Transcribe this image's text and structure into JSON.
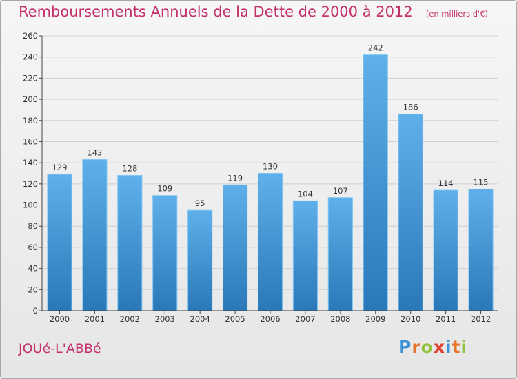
{
  "header": {
    "title": "Remboursements Annuels de la Dette de 2000 à 2012",
    "unit_note": "(en milliers d'€)"
  },
  "footer": {
    "commune": "JOUé-L'ABBé",
    "logo_text": "Proxiti"
  },
  "colors": {
    "title": "#c4306a",
    "bar_top": "#5fb0ea",
    "bar_bottom": "#2a78b8",
    "grid": "#cfcfcf"
  },
  "chart_data": {
    "type": "bar",
    "title": "Remboursements Annuels de la Dette de 2000 à 2012",
    "subtitle": "(en milliers d'€)",
    "xlabel": "",
    "ylabel": "",
    "categories": [
      "2000",
      "2001",
      "2002",
      "2003",
      "2004",
      "2005",
      "2006",
      "2007",
      "2008",
      "2009",
      "2010",
      "2011",
      "2012"
    ],
    "values": [
      129,
      143,
      128,
      109,
      95,
      119,
      130,
      104,
      107,
      242,
      186,
      114,
      115
    ],
    "data_labels": [
      "129",
      "143",
      "128",
      "109",
      "95",
      "119",
      "130",
      "104",
      "107",
      "242",
      "186",
      "114",
      "115"
    ],
    "ylim": [
      0,
      260
    ],
    "yticks": [
      0,
      20,
      40,
      60,
      80,
      100,
      120,
      140,
      160,
      180,
      200,
      220,
      240,
      260
    ],
    "grid": true,
    "legend": "none"
  }
}
